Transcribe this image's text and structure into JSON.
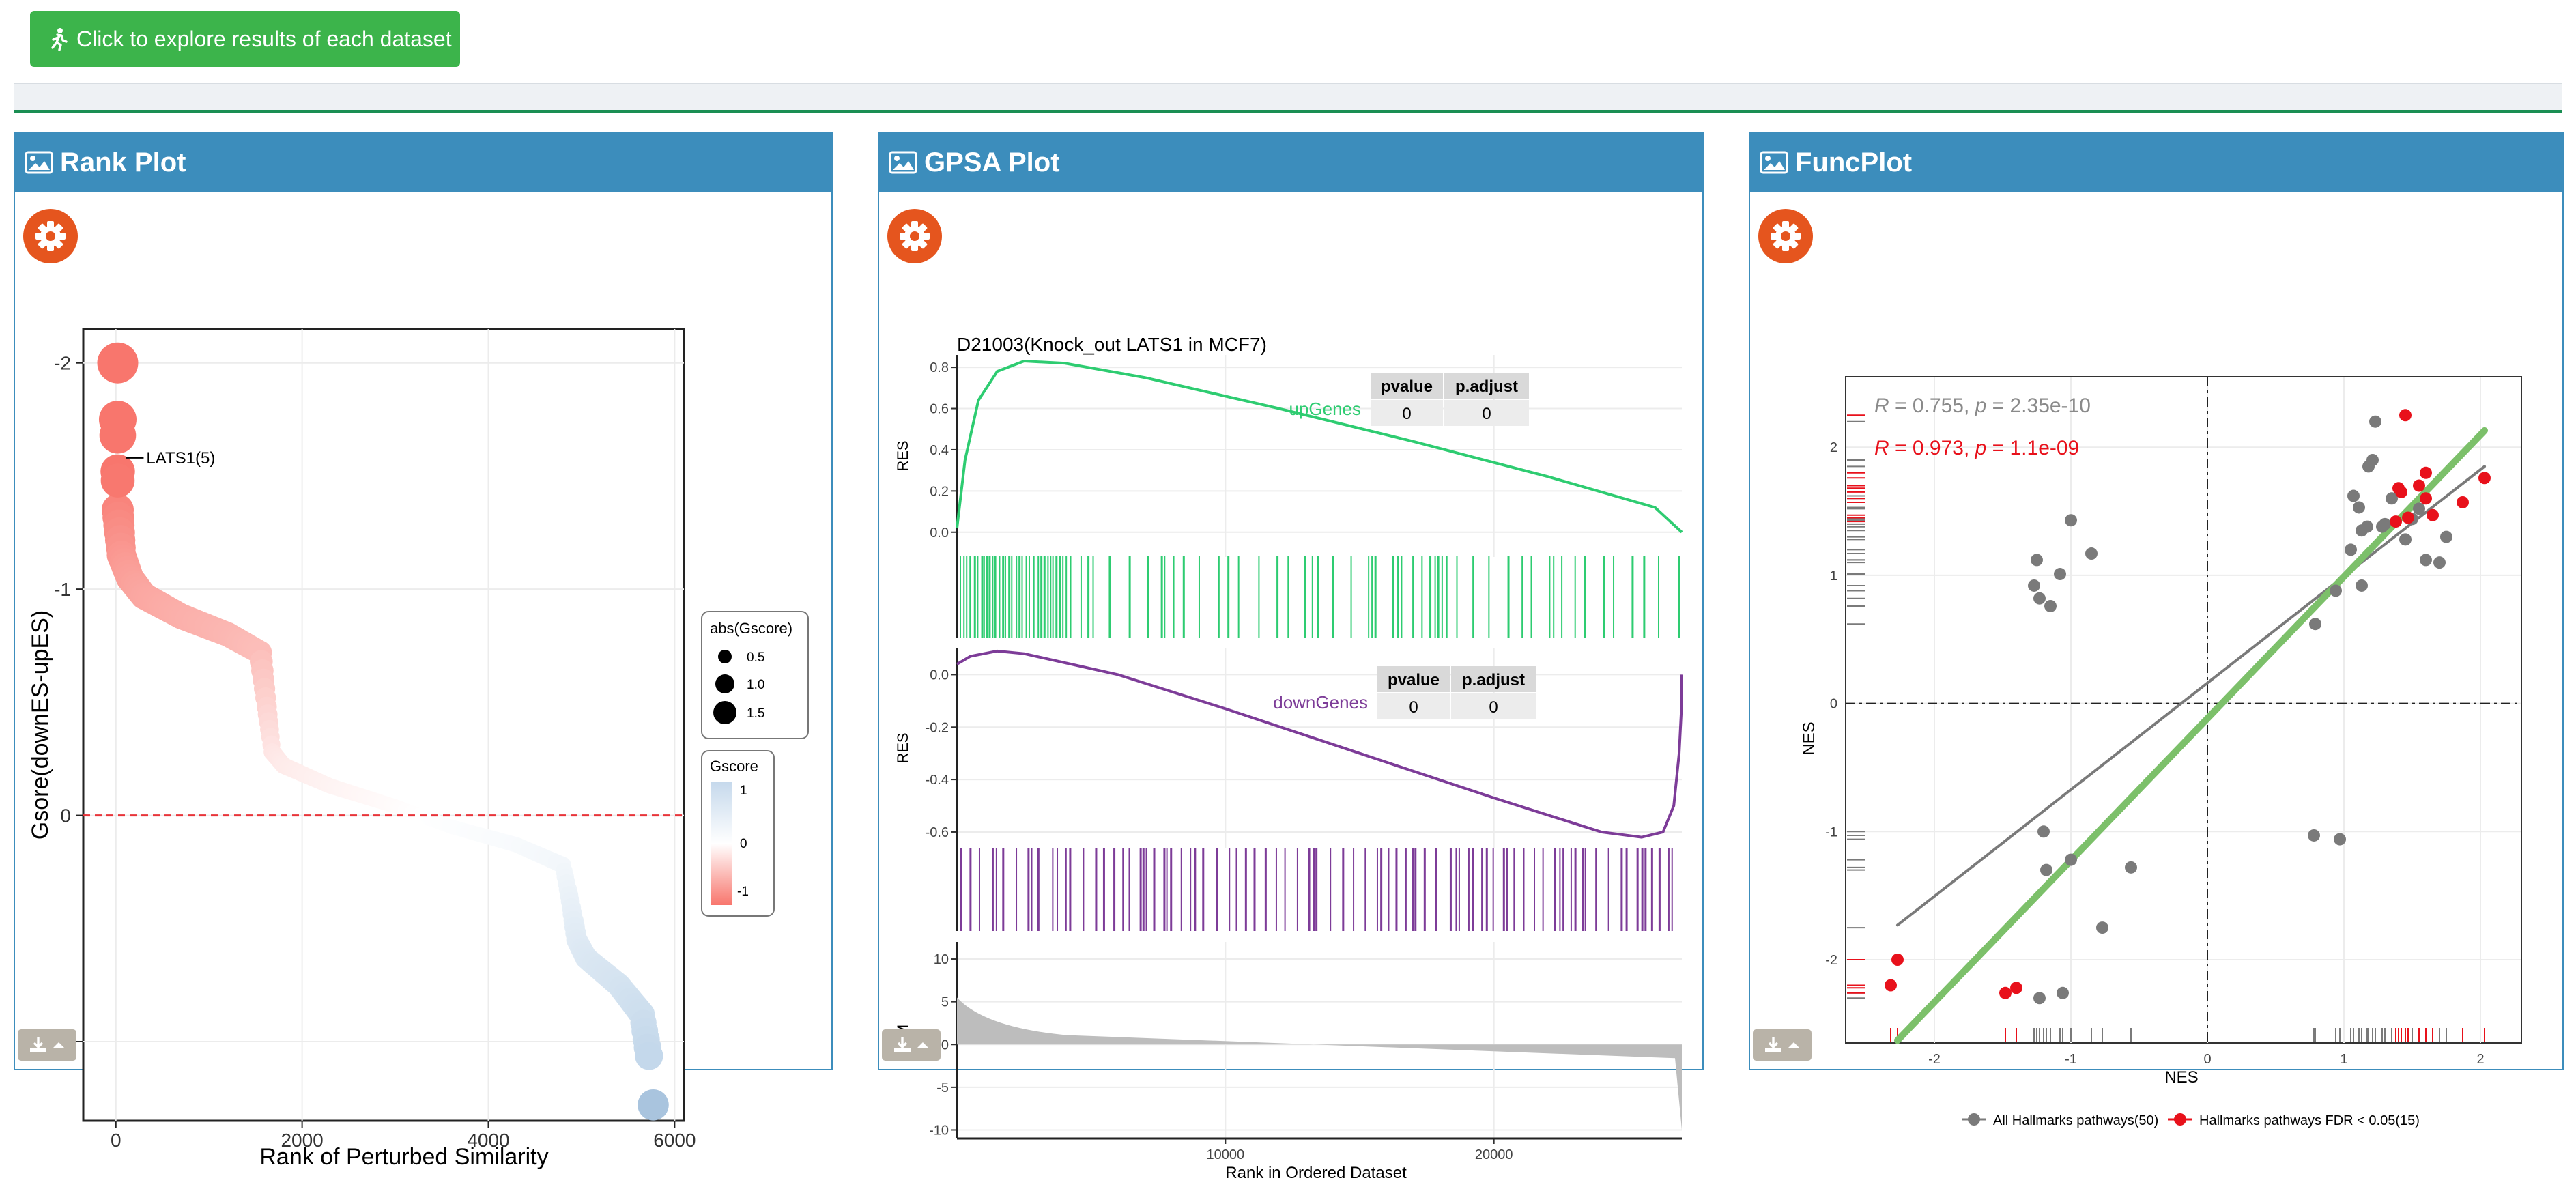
{
  "top": {
    "explore_label": "Click to explore results of each dataset"
  },
  "rank_panel": {
    "title": "Rank Plot"
  },
  "gpsa_panel": {
    "title": "GPSA Plot"
  },
  "func_panel": {
    "title": "FuncPlot"
  },
  "colors": {
    "accent_blue": "#3c8dbc",
    "button_green": "#3cb44b",
    "gear_orange": "#e5551e",
    "up_green": "#2ecc71",
    "down_purple": "#7d3c98"
  },
  "icons": {
    "explore": "running-person-icon",
    "header": "image-icon",
    "settings": "gear-icon",
    "download": "download-icon"
  },
  "chart_data": [
    {
      "type": "scatter",
      "xlabel": "Rank of Perturbed Similarity",
      "ylabel": "Gsore(downES-upES)",
      "xticks": [
        "0",
        "2000",
        "4000",
        "6000"
      ],
      "yticks": [
        "-2",
        "-1",
        "0",
        "1"
      ],
      "xlim": [
        -350,
        6100
      ],
      "ylim": [
        -2.15,
        1.35
      ],
      "y_reversed": true,
      "annotation": {
        "label": "LATS1(5)",
        "x": 5,
        "y": -1.58
      },
      "legend_size_title": "abs(Gscore)",
      "legend_size_labels": [
        "0.5",
        "1.0",
        "1.5"
      ],
      "legend_color_title": "Gscore",
      "legend_color_labels": [
        "1",
        "0",
        "-1"
      ],
      "top_points_y": [
        -2.0,
        -1.75,
        -1.68,
        -1.52,
        -1.48
      ],
      "curve": [
        [
          20,
          -1.35
        ],
        [
          60,
          -1.15
        ],
        [
          150,
          -1.05
        ],
        [
          300,
          -0.97
        ],
        [
          700,
          -0.88
        ],
        [
          1200,
          -0.8
        ],
        [
          1550,
          -0.72
        ],
        [
          1620,
          -0.48
        ],
        [
          1680,
          -0.28
        ],
        [
          1800,
          -0.22
        ],
        [
          2300,
          -0.13
        ],
        [
          3000,
          -0.04
        ],
        [
          3600,
          0.05
        ],
        [
          4300,
          0.13
        ],
        [
          4800,
          0.22
        ],
        [
          4880,
          0.38
        ],
        [
          4950,
          0.55
        ],
        [
          5050,
          0.63
        ],
        [
          5400,
          0.75
        ],
        [
          5650,
          0.88
        ],
        [
          5740,
          1.1
        ]
      ],
      "last_point": {
        "x": 5770,
        "y": 1.28
      }
    },
    {
      "type": "line",
      "title": "D21003(Knock_out LATS1 in MCF7)",
      "xlabel": "Rank in Ordered Dataset",
      "xticks": [
        "10000",
        "20000"
      ],
      "xlim": [
        0,
        27000
      ],
      "panels": [
        {
          "name": "upGenes",
          "ylabel": "RES",
          "ylim": [
            -0.12,
            0.86
          ],
          "yticks": [
            "0.0",
            "0.2",
            "0.4",
            "0.6",
            "0.8"
          ],
          "table": {
            "headers": [
              "pvalue",
              "p.adjust"
            ],
            "values": [
              "0",
              "0"
            ]
          },
          "curve": [
            [
              0,
              0.02
            ],
            [
              300,
              0.35
            ],
            [
              800,
              0.64
            ],
            [
              1500,
              0.78
            ],
            [
              2500,
              0.83
            ],
            [
              4000,
              0.82
            ],
            [
              7000,
              0.75
            ],
            [
              12000,
              0.6
            ],
            [
              17000,
              0.44
            ],
            [
              22000,
              0.27
            ],
            [
              26000,
              0.12
            ],
            [
              27000,
              0.0
            ]
          ]
        },
        {
          "name": "downGenes",
          "ylabel": "RES",
          "ylim": [
            -0.66,
            0.1
          ],
          "yticks": [
            "0.0",
            "-0.2",
            "-0.4",
            "-0.6"
          ],
          "table": {
            "headers": [
              "pvalue",
              "p.adjust"
            ],
            "values": [
              "0",
              "0"
            ]
          },
          "curve": [
            [
              0,
              0.04
            ],
            [
              500,
              0.07
            ],
            [
              1500,
              0.09
            ],
            [
              2500,
              0.08
            ],
            [
              6000,
              0.0
            ],
            [
              10000,
              -0.13
            ],
            [
              15000,
              -0.3
            ],
            [
              20000,
              -0.47
            ],
            [
              24000,
              -0.6
            ],
            [
              25500,
              -0.62
            ],
            [
              26300,
              -0.6
            ],
            [
              26700,
              -0.5
            ],
            [
              26900,
              -0.3
            ],
            [
              27000,
              -0.1
            ],
            [
              27000,
              0.0
            ]
          ]
        },
        {
          "name": "RLM",
          "ylabel": "RLM",
          "ylim": [
            -11,
            12
          ],
          "yticks": [
            "10",
            "5",
            "0",
            "-5",
            "-10"
          ]
        }
      ]
    },
    {
      "type": "scatter",
      "xlabel": "NES",
      "ylabel": "NES",
      "xticks": [
        "-2",
        "-1",
        "0",
        "1",
        "2"
      ],
      "yticks": [
        "2",
        "1",
        "0",
        "-1",
        "-2"
      ],
      "xlim": [
        -2.65,
        2.3
      ],
      "ylim": [
        -2.65,
        2.55
      ],
      "stats": [
        {
          "r": "0.755",
          "p": "2.35e-10",
          "color": "#8a8a8a"
        },
        {
          "r": "0.973",
          "p": "1.1e-09",
          "color": "#e8111b"
        }
      ],
      "series": [
        {
          "name": "All Hallmarks pathways(50)",
          "color": "#7a7a7a",
          "points": [
            [
              -1.25,
              1.12
            ],
            [
              -1.08,
              1.01
            ],
            [
              -1.27,
              0.92
            ],
            [
              -1.15,
              0.76
            ],
            [
              -0.85,
              1.17
            ],
            [
              -1.0,
              1.43
            ],
            [
              -1.23,
              0.82
            ],
            [
              -1.2,
              -1.0
            ],
            [
              -1.18,
              -1.3
            ],
            [
              -1.0,
              -1.22
            ],
            [
              -0.56,
              -1.28
            ],
            [
              -0.77,
              -1.75
            ],
            [
              -1.06,
              -2.26
            ],
            [
              -1.23,
              -2.3
            ],
            [
              0.79,
              0.62
            ],
            [
              0.78,
              -1.03
            ],
            [
              0.97,
              -1.06
            ],
            [
              0.94,
              0.88
            ],
            [
              1.13,
              0.92
            ],
            [
              1.05,
              1.2
            ],
            [
              1.07,
              1.62
            ],
            [
              1.11,
              1.53
            ],
            [
              1.13,
              1.35
            ],
            [
              1.17,
              1.38
            ],
            [
              1.21,
              1.9
            ],
            [
              1.23,
              2.2
            ],
            [
              1.3,
              1.4
            ],
            [
              1.35,
              1.6
            ],
            [
              1.45,
              1.28
            ],
            [
              1.5,
              1.44
            ],
            [
              1.55,
              1.52
            ],
            [
              1.6,
              1.12
            ],
            [
              1.7,
              1.1
            ],
            [
              1.75,
              1.3
            ],
            [
              1.18,
              1.85
            ],
            [
              1.28,
              1.38
            ]
          ]
        },
        {
          "name": "Hallmarks pathways FDR < 0.05(15)",
          "color": "#e8111b",
          "points": [
            [
              -2.32,
              -2.2
            ],
            [
              -2.27,
              -2.0
            ],
            [
              -1.48,
              -2.26
            ],
            [
              -1.4,
              -2.22
            ],
            [
              1.38,
              1.42
            ],
            [
              1.42,
              1.65
            ],
            [
              1.45,
              2.25
            ],
            [
              1.47,
              1.45
            ],
            [
              1.55,
              1.7
            ],
            [
              1.6,
              1.8
            ],
            [
              1.65,
              1.47
            ],
            [
              1.87,
              1.57
            ],
            [
              2.03,
              1.76
            ],
            [
              1.4,
              1.68
            ],
            [
              1.6,
              1.6
            ]
          ]
        }
      ],
      "fit_lines": [
        {
          "color": "#7a7a7a",
          "from": [
            -2.27,
            -1.73
          ],
          "to": [
            2.03,
            1.85
          ]
        },
        {
          "color": "#7cc06a",
          "from": [
            -2.27,
            -2.63
          ],
          "to": [
            2.03,
            2.13
          ]
        }
      ],
      "ref_lines": {
        "x": 0,
        "y": 0
      }
    }
  ]
}
